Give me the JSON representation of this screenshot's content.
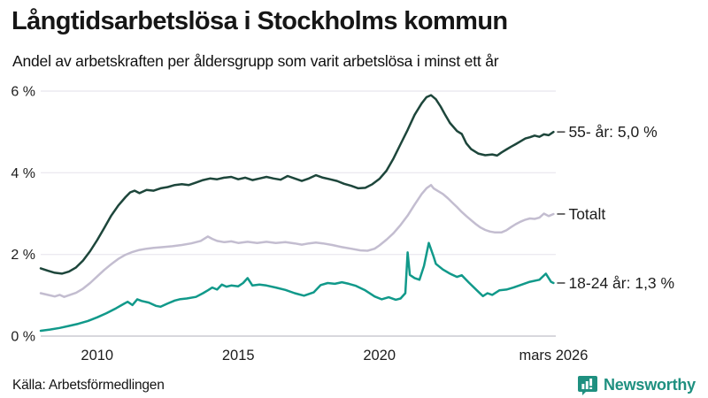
{
  "header": {
    "title": "Långtidsarbetslösa i Stockholms kommun",
    "subtitle": "Andel av arbetskraften per åldersgrupp som varit arbetslösa i minst ett år"
  },
  "footer": {
    "source": "Källa: Arbetsförmedlingen",
    "brand": "Newsworthy",
    "brand_color": "#1f9080",
    "logo_icon": "newsworthy-speech-bubble-bar-chart"
  },
  "colors": {
    "grid": "#eceaf0",
    "baseline": "#d8d7dd",
    "tick_text": "#1d1d1d",
    "label_text": "#1d1d1d",
    "connector": "#3c3c3c"
  },
  "chart_data": {
    "type": "line",
    "title": "Långtidsarbetslösa i Stockholms kommun",
    "subtitle": "Andel av arbetskraften per åldersgrupp som varit arbetslösa i minst ett år",
    "xlabel": "",
    "ylabel": "",
    "grid": true,
    "legend_position": "right-of-line-ends",
    "x_axis": {
      "min": 2008.0,
      "max": 2026.25,
      "ticks": [
        {
          "x": 2010,
          "label": "2010"
        },
        {
          "x": 2015,
          "label": "2015"
        },
        {
          "x": 2020,
          "label": "2020"
        },
        {
          "x": 2026.17,
          "label": "mars 2026"
        }
      ]
    },
    "y_axis": {
      "min": 0,
      "max": 6,
      "ticks": [
        {
          "value": 0,
          "label": "0 %"
        },
        {
          "value": 2,
          "label": "2 %"
        },
        {
          "value": 4,
          "label": "4 %"
        },
        {
          "value": 6,
          "label": "6 %"
        }
      ]
    },
    "series": [
      {
        "name": "55- år",
        "label": "55- år: 5,0 %",
        "end_value": 5.0,
        "color": "#1d463b",
        "points": [
          [
            2008.0,
            1.66
          ],
          [
            2008.25,
            1.6
          ],
          [
            2008.5,
            1.55
          ],
          [
            2008.75,
            1.53
          ],
          [
            2009.0,
            1.58
          ],
          [
            2009.25,
            1.68
          ],
          [
            2009.5,
            1.85
          ],
          [
            2009.75,
            2.08
          ],
          [
            2010.0,
            2.35
          ],
          [
            2010.25,
            2.65
          ],
          [
            2010.5,
            2.95
          ],
          [
            2010.75,
            3.2
          ],
          [
            2011.0,
            3.4
          ],
          [
            2011.17,
            3.52
          ],
          [
            2011.33,
            3.56
          ],
          [
            2011.5,
            3.5
          ],
          [
            2011.75,
            3.58
          ],
          [
            2012.0,
            3.56
          ],
          [
            2012.25,
            3.62
          ],
          [
            2012.5,
            3.65
          ],
          [
            2012.75,
            3.7
          ],
          [
            2013.0,
            3.72
          ],
          [
            2013.25,
            3.7
          ],
          [
            2013.5,
            3.76
          ],
          [
            2013.75,
            3.82
          ],
          [
            2014.0,
            3.86
          ],
          [
            2014.25,
            3.84
          ],
          [
            2014.5,
            3.88
          ],
          [
            2014.75,
            3.9
          ],
          [
            2015.0,
            3.84
          ],
          [
            2015.25,
            3.88
          ],
          [
            2015.5,
            3.82
          ],
          [
            2015.75,
            3.86
          ],
          [
            2016.0,
            3.9
          ],
          [
            2016.25,
            3.86
          ],
          [
            2016.5,
            3.83
          ],
          [
            2016.75,
            3.92
          ],
          [
            2017.0,
            3.86
          ],
          [
            2017.25,
            3.8
          ],
          [
            2017.5,
            3.86
          ],
          [
            2017.75,
            3.94
          ],
          [
            2018.0,
            3.88
          ],
          [
            2018.25,
            3.84
          ],
          [
            2018.5,
            3.8
          ],
          [
            2018.75,
            3.73
          ],
          [
            2019.0,
            3.68
          ],
          [
            2019.25,
            3.62
          ],
          [
            2019.5,
            3.63
          ],
          [
            2019.75,
            3.72
          ],
          [
            2020.0,
            3.85
          ],
          [
            2020.25,
            4.05
          ],
          [
            2020.5,
            4.35
          ],
          [
            2020.75,
            4.7
          ],
          [
            2021.0,
            5.05
          ],
          [
            2021.25,
            5.42
          ],
          [
            2021.5,
            5.7
          ],
          [
            2021.67,
            5.85
          ],
          [
            2021.83,
            5.9
          ],
          [
            2022.0,
            5.8
          ],
          [
            2022.17,
            5.62
          ],
          [
            2022.33,
            5.42
          ],
          [
            2022.5,
            5.22
          ],
          [
            2022.75,
            5.02
          ],
          [
            2022.92,
            4.95
          ],
          [
            2023.08,
            4.72
          ],
          [
            2023.25,
            4.58
          ],
          [
            2023.5,
            4.47
          ],
          [
            2023.75,
            4.43
          ],
          [
            2024.0,
            4.45
          ],
          [
            2024.17,
            4.42
          ],
          [
            2024.33,
            4.5
          ],
          [
            2024.5,
            4.57
          ],
          [
            2024.67,
            4.64
          ],
          [
            2024.83,
            4.7
          ],
          [
            2025.0,
            4.77
          ],
          [
            2025.17,
            4.84
          ],
          [
            2025.33,
            4.87
          ],
          [
            2025.5,
            4.91
          ],
          [
            2025.67,
            4.88
          ],
          [
            2025.83,
            4.94
          ],
          [
            2026.0,
            4.92
          ],
          [
            2026.17,
            5.0
          ]
        ]
      },
      {
        "name": "Totalt",
        "label": "Totalt",
        "end_value": 3.0,
        "color": "#c3bdd0",
        "points": [
          [
            2008.0,
            1.05
          ],
          [
            2008.25,
            1.01
          ],
          [
            2008.5,
            0.97
          ],
          [
            2008.67,
            1.01
          ],
          [
            2008.83,
            0.96
          ],
          [
            2009.0,
            1.0
          ],
          [
            2009.25,
            1.06
          ],
          [
            2009.5,
            1.16
          ],
          [
            2009.75,
            1.3
          ],
          [
            2010.0,
            1.46
          ],
          [
            2010.25,
            1.62
          ],
          [
            2010.5,
            1.76
          ],
          [
            2010.75,
            1.89
          ],
          [
            2011.0,
            1.99
          ],
          [
            2011.25,
            2.06
          ],
          [
            2011.5,
            2.11
          ],
          [
            2011.75,
            2.14
          ],
          [
            2012.0,
            2.16
          ],
          [
            2012.33,
            2.18
          ],
          [
            2012.67,
            2.2
          ],
          [
            2013.0,
            2.23
          ],
          [
            2013.33,
            2.27
          ],
          [
            2013.67,
            2.33
          ],
          [
            2013.92,
            2.44
          ],
          [
            2014.08,
            2.38
          ],
          [
            2014.25,
            2.33
          ],
          [
            2014.5,
            2.3
          ],
          [
            2014.75,
            2.32
          ],
          [
            2015.0,
            2.28
          ],
          [
            2015.33,
            2.31
          ],
          [
            2015.67,
            2.28
          ],
          [
            2016.0,
            2.31
          ],
          [
            2016.33,
            2.28
          ],
          [
            2016.67,
            2.3
          ],
          [
            2017.0,
            2.27
          ],
          [
            2017.25,
            2.24
          ],
          [
            2017.5,
            2.27
          ],
          [
            2017.75,
            2.29
          ],
          [
            2018.0,
            2.27
          ],
          [
            2018.33,
            2.23
          ],
          [
            2018.67,
            2.18
          ],
          [
            2019.0,
            2.14
          ],
          [
            2019.33,
            2.1
          ],
          [
            2019.58,
            2.09
          ],
          [
            2019.83,
            2.14
          ],
          [
            2020.0,
            2.22
          ],
          [
            2020.25,
            2.36
          ],
          [
            2020.5,
            2.52
          ],
          [
            2020.75,
            2.72
          ],
          [
            2021.0,
            2.95
          ],
          [
            2021.25,
            3.22
          ],
          [
            2021.5,
            3.48
          ],
          [
            2021.67,
            3.62
          ],
          [
            2021.83,
            3.7
          ],
          [
            2021.92,
            3.62
          ],
          [
            2022.08,
            3.55
          ],
          [
            2022.25,
            3.48
          ],
          [
            2022.42,
            3.38
          ],
          [
            2022.58,
            3.27
          ],
          [
            2022.75,
            3.16
          ],
          [
            2022.92,
            3.04
          ],
          [
            2023.08,
            2.94
          ],
          [
            2023.25,
            2.84
          ],
          [
            2023.42,
            2.74
          ],
          [
            2023.58,
            2.66
          ],
          [
            2023.75,
            2.6
          ],
          [
            2023.92,
            2.56
          ],
          [
            2024.08,
            2.54
          ],
          [
            2024.33,
            2.54
          ],
          [
            2024.5,
            2.59
          ],
          [
            2024.67,
            2.67
          ],
          [
            2024.83,
            2.74
          ],
          [
            2025.0,
            2.8
          ],
          [
            2025.17,
            2.85
          ],
          [
            2025.33,
            2.88
          ],
          [
            2025.5,
            2.87
          ],
          [
            2025.67,
            2.9
          ],
          [
            2025.83,
            3.0
          ],
          [
            2026.0,
            2.94
          ],
          [
            2026.17,
            2.99
          ]
        ]
      },
      {
        "name": "18-24 år",
        "label": "18-24 år: 1,3 %",
        "end_value": 1.3,
        "color": "#11998a",
        "points": [
          [
            2008.0,
            0.13
          ],
          [
            2008.33,
            0.16
          ],
          [
            2008.67,
            0.2
          ],
          [
            2009.0,
            0.25
          ],
          [
            2009.33,
            0.3
          ],
          [
            2009.67,
            0.37
          ],
          [
            2010.0,
            0.46
          ],
          [
            2010.33,
            0.56
          ],
          [
            2010.67,
            0.68
          ],
          [
            2010.92,
            0.78
          ],
          [
            2011.08,
            0.84
          ],
          [
            2011.25,
            0.76
          ],
          [
            2011.42,
            0.9
          ],
          [
            2011.58,
            0.86
          ],
          [
            2011.83,
            0.82
          ],
          [
            2012.08,
            0.74
          ],
          [
            2012.25,
            0.72
          ],
          [
            2012.5,
            0.8
          ],
          [
            2012.75,
            0.87
          ],
          [
            2012.92,
            0.9
          ],
          [
            2013.17,
            0.92
          ],
          [
            2013.5,
            0.96
          ],
          [
            2013.75,
            1.05
          ],
          [
            2013.92,
            1.12
          ],
          [
            2014.08,
            1.19
          ],
          [
            2014.25,
            1.14
          ],
          [
            2014.42,
            1.26
          ],
          [
            2014.58,
            1.21
          ],
          [
            2014.75,
            1.24
          ],
          [
            2015.0,
            1.22
          ],
          [
            2015.17,
            1.3
          ],
          [
            2015.33,
            1.42
          ],
          [
            2015.5,
            1.24
          ],
          [
            2015.75,
            1.26
          ],
          [
            2016.0,
            1.24
          ],
          [
            2016.33,
            1.19
          ],
          [
            2016.67,
            1.13
          ],
          [
            2017.0,
            1.05
          ],
          [
            2017.33,
            0.99
          ],
          [
            2017.67,
            1.07
          ],
          [
            2017.92,
            1.25
          ],
          [
            2018.17,
            1.3
          ],
          [
            2018.42,
            1.28
          ],
          [
            2018.67,
            1.32
          ],
          [
            2018.92,
            1.28
          ],
          [
            2019.17,
            1.23
          ],
          [
            2019.5,
            1.12
          ],
          [
            2019.83,
            0.97
          ],
          [
            2020.08,
            0.9
          ],
          [
            2020.33,
            0.95
          ],
          [
            2020.58,
            0.89
          ],
          [
            2020.75,
            0.92
          ],
          [
            2020.92,
            1.05
          ],
          [
            2021.0,
            2.05
          ],
          [
            2021.08,
            1.5
          ],
          [
            2021.25,
            1.42
          ],
          [
            2021.42,
            1.38
          ],
          [
            2021.58,
            1.72
          ],
          [
            2021.75,
            2.28
          ],
          [
            2021.92,
            1.95
          ],
          [
            2022.0,
            1.77
          ],
          [
            2022.25,
            1.63
          ],
          [
            2022.5,
            1.53
          ],
          [
            2022.75,
            1.45
          ],
          [
            2022.92,
            1.49
          ],
          [
            2023.17,
            1.31
          ],
          [
            2023.5,
            1.09
          ],
          [
            2023.67,
            0.98
          ],
          [
            2023.83,
            1.05
          ],
          [
            2024.0,
            1.01
          ],
          [
            2024.25,
            1.12
          ],
          [
            2024.5,
            1.14
          ],
          [
            2024.75,
            1.19
          ],
          [
            2025.0,
            1.25
          ],
          [
            2025.33,
            1.33
          ],
          [
            2025.67,
            1.38
          ],
          [
            2025.9,
            1.53
          ],
          [
            2026.08,
            1.33
          ],
          [
            2026.17,
            1.3
          ]
        ]
      }
    ]
  }
}
